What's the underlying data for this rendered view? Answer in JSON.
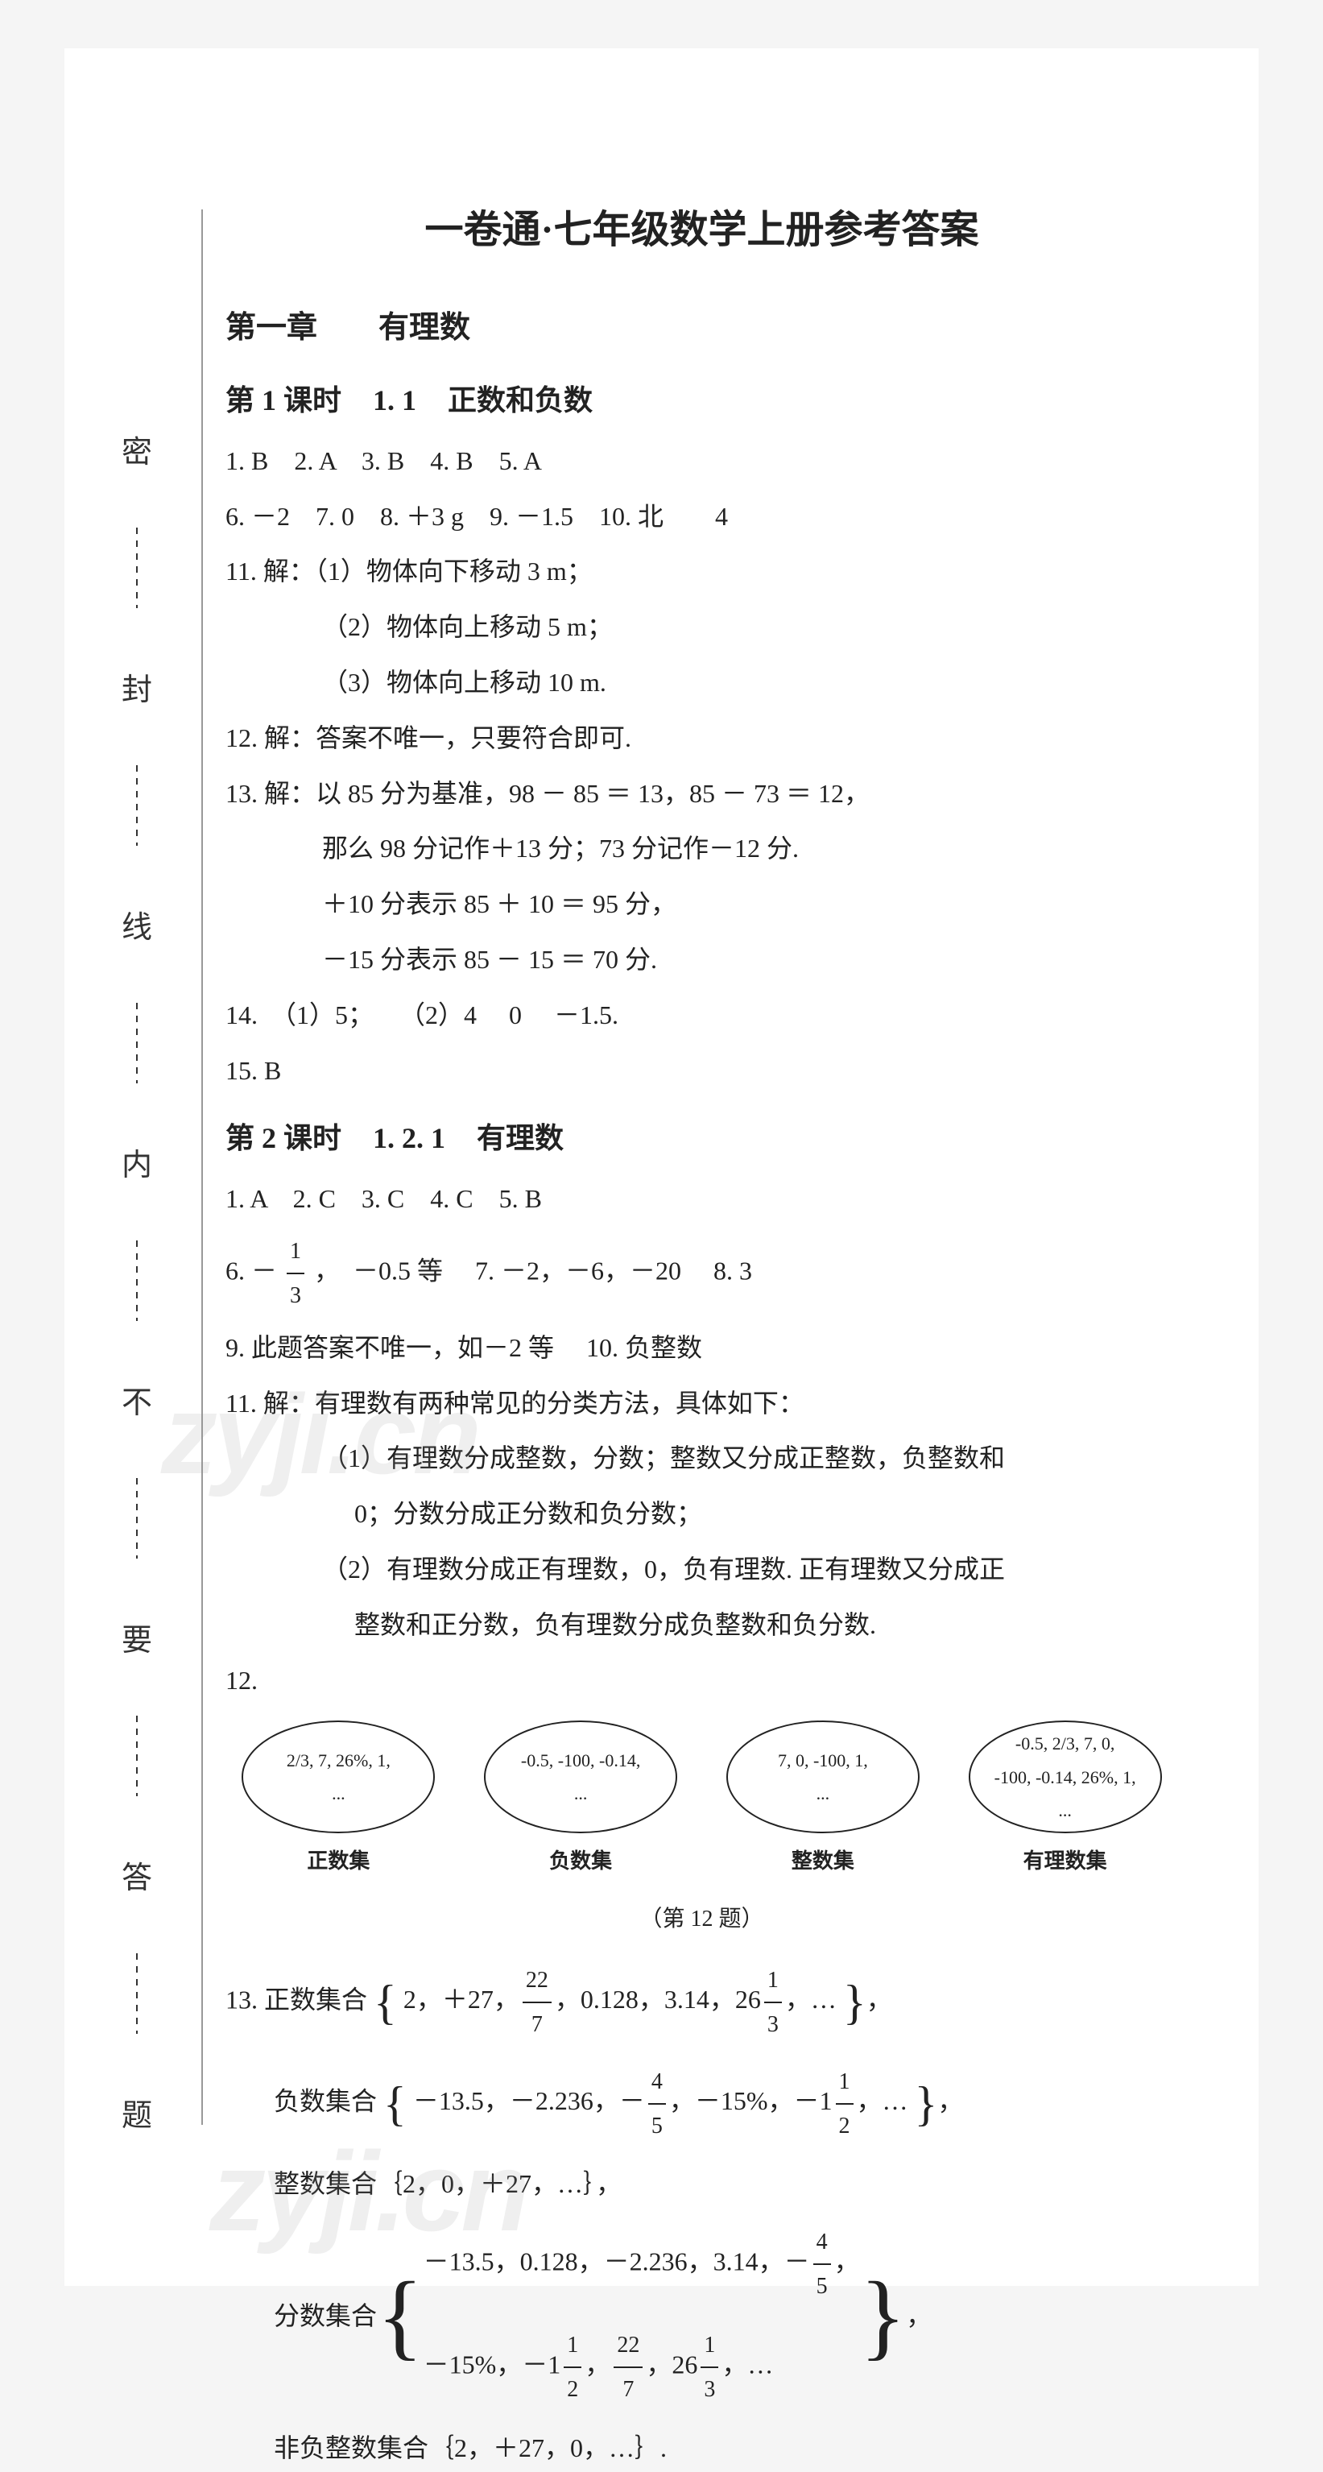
{
  "mainTitle": "一卷通·七年级数学上册参考答案",
  "chapter1": {
    "title": "第一章　　有理数",
    "section1": {
      "lessonLabel": "第 1 课时",
      "codeLabel": "1. 1",
      "topicLabel": "正数和负数",
      "line1": "1. B　2. A　3. B　4. B　5. A",
      "line2": "6. －2　7. 0　8. ＋3 g　9. －1.5　10. 北　　4",
      "line3": "11. 解：（1）物体向下移动 3 m；",
      "line3b": "（2）物体向上移动 5 m；",
      "line3c": "（3）物体向上移动 10 m.",
      "line4": "12. 解：答案不唯一，只要符合即可.",
      "line5": "13. 解：以 85 分为基准，98 － 85 ＝ 13，85 － 73 ＝ 12，",
      "line5b": "那么 98 分记作＋13 分；73 分记作－12 分.",
      "line5c": "＋10 分表示 85 ＋ 10 ＝ 95 分，",
      "line5d": "－15 分表示 85 － 15 ＝ 70 分.",
      "line6": "14.　（1）5；　　（2）4　 0　 －1.5.",
      "line7": "15. B"
    },
    "section2": {
      "lessonLabel": "第 2 课时",
      "codeLabel": "1. 2. 1",
      "topicLabel": "有理数",
      "line1": "1. A　2. C　3. C　4. C　5. B",
      "line6pre": "6. －",
      "line6frac_num": "1",
      "line6frac_den": "3",
      "line6post": "，　－0.5 等　 7. －2，－6，－20　 8. 3",
      "line7": "9. 此题答案不唯一，如－2 等　 10. 负整数",
      "line8": "11. 解：有理数有两种常见的分类方法，具体如下：",
      "line8b": "（1）有理数分成整数，分数；整数又分成正整数，负整数和",
      "line8b2": "0；分数分成正分数和负分数；",
      "line8c": "（2）有理数分成正有理数，0，负有理数. 正有理数又分成正",
      "line8c2": "整数和正分数，负有理数分成负整数和负分数.",
      "line9": "12.",
      "ovals": [
        {
          "content1": "2/3, 7, 26%, 1,",
          "content2": "...",
          "label": "正数集"
        },
        {
          "content1": "-0.5, -100, -0.14,",
          "content2": "...",
          "label": "负数集"
        },
        {
          "content1": "7, 0, -100, 1,",
          "content2": "...",
          "label": "整数集"
        },
        {
          "content1": "-0.5, 2/3, 7, 0,",
          "content2": "-100, -0.14, 26%, 1,",
          "content3": "...",
          "label": "有理数集"
        }
      ],
      "figureCaption": "（第 12 题）",
      "set1_label": "13. 正数集合",
      "set1_content": "2，＋27，22/7，0.128，3.14，26 1/3，…",
      "set2_label": "负数集合",
      "set2_content": "－13.5，－2.236，－4/5，－15%，－1 1/2，…",
      "set3_label": "整数集合｛2，0，＋27，…｝，",
      "set4_label": "分数集合",
      "set4_line1": "－13.5，0.128，－2.236，3.14，－4/5，",
      "set4_line2": "－15%，－1 1/2，22/7，26 1/3，…",
      "set5": "非负整数集合｛2，＋27，0，…｝."
    }
  },
  "binding": {
    "chars": [
      "密",
      "封",
      "线",
      "内",
      "不",
      "要",
      "答",
      "题"
    ]
  },
  "watermark": "zyji.cn",
  "colors": {
    "background": "#f5f5f5",
    "paper": "#ffffff",
    "text": "#222222",
    "watermark": "rgba(150,150,150,0.15)"
  }
}
